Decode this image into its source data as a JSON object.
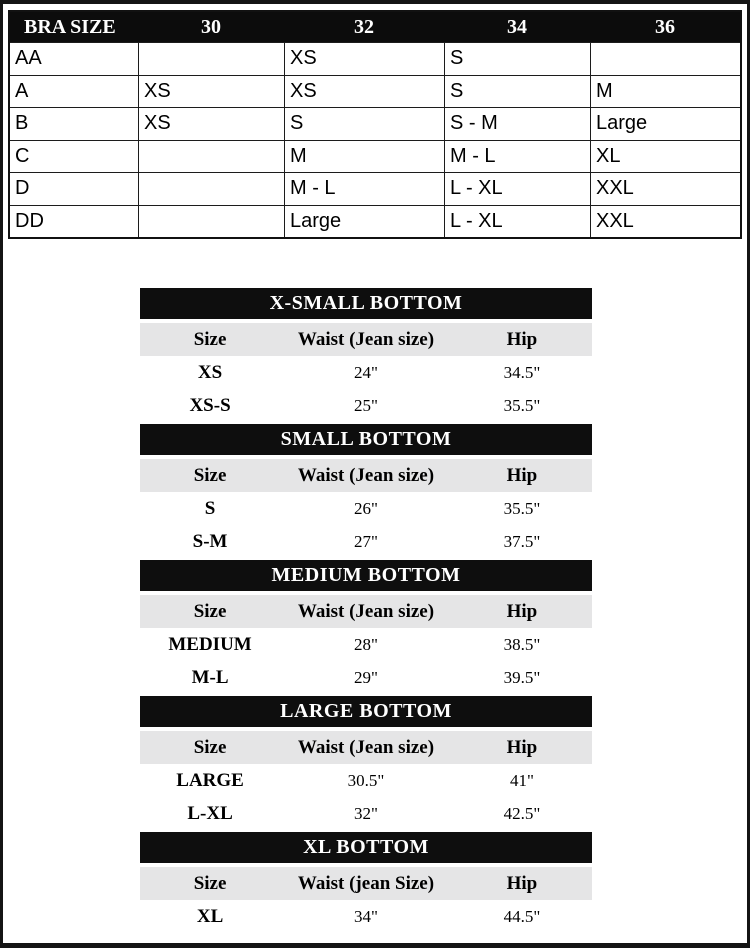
{
  "colors": {
    "title_bar_bg": "#0e0e0e",
    "title_bar_text": "#ffffff",
    "column_header_bg": "#e5e5e6",
    "body_text": "#000000",
    "page_border": "#141414"
  },
  "bra_table": {
    "header": [
      "BRA SIZE",
      "30",
      "32",
      "34",
      "36"
    ],
    "rows": [
      [
        "AA",
        "",
        "XS",
        "S",
        ""
      ],
      [
        "A",
        "XS",
        "XS",
        "S",
        "M"
      ],
      [
        "B",
        "XS",
        "S",
        "S - M",
        "Large"
      ],
      [
        "C",
        "",
        "M",
        "M - L",
        "XL"
      ],
      [
        "D",
        "",
        "M - L",
        "L - XL",
        "XXL"
      ],
      [
        "DD",
        "",
        "Large",
        "L - XL",
        "XXL"
      ]
    ]
  },
  "bottom_tables": [
    {
      "title": "X-SMALL BOTTOM",
      "columns": [
        "Size",
        "Waist (Jean size)",
        "Hip"
      ],
      "rows": [
        [
          "XS",
          "24\"",
          "34.5\""
        ],
        [
          "XS-S",
          "25\"",
          "35.5\""
        ]
      ]
    },
    {
      "title": "SMALL BOTTOM",
      "columns": [
        "Size",
        "Waist (Jean size)",
        "Hip"
      ],
      "rows": [
        [
          "S",
          "26\"",
          "35.5\""
        ],
        [
          "S-M",
          "27\"",
          "37.5\""
        ]
      ]
    },
    {
      "title": "MEDIUM BOTTOM",
      "columns": [
        "Size",
        "Waist (Jean size)",
        "Hip"
      ],
      "rows": [
        [
          "MEDIUM",
          "28\"",
          "38.5\""
        ],
        [
          "M-L",
          "29\"",
          "39.5\""
        ]
      ]
    },
    {
      "title": "LARGE BOTTOM",
      "columns": [
        "Size",
        "Waist (Jean size)",
        "Hip"
      ],
      "rows": [
        [
          "LARGE",
          "30.5\"",
          "41\""
        ],
        [
          "L-XL",
          "32\"",
          "42.5\""
        ]
      ]
    },
    {
      "title": "XL BOTTOM",
      "columns": [
        "Size",
        "Waist (jean Size)",
        "Hip"
      ],
      "rows": [
        [
          "XL",
          "34\"",
          "44.5\""
        ]
      ]
    }
  ]
}
